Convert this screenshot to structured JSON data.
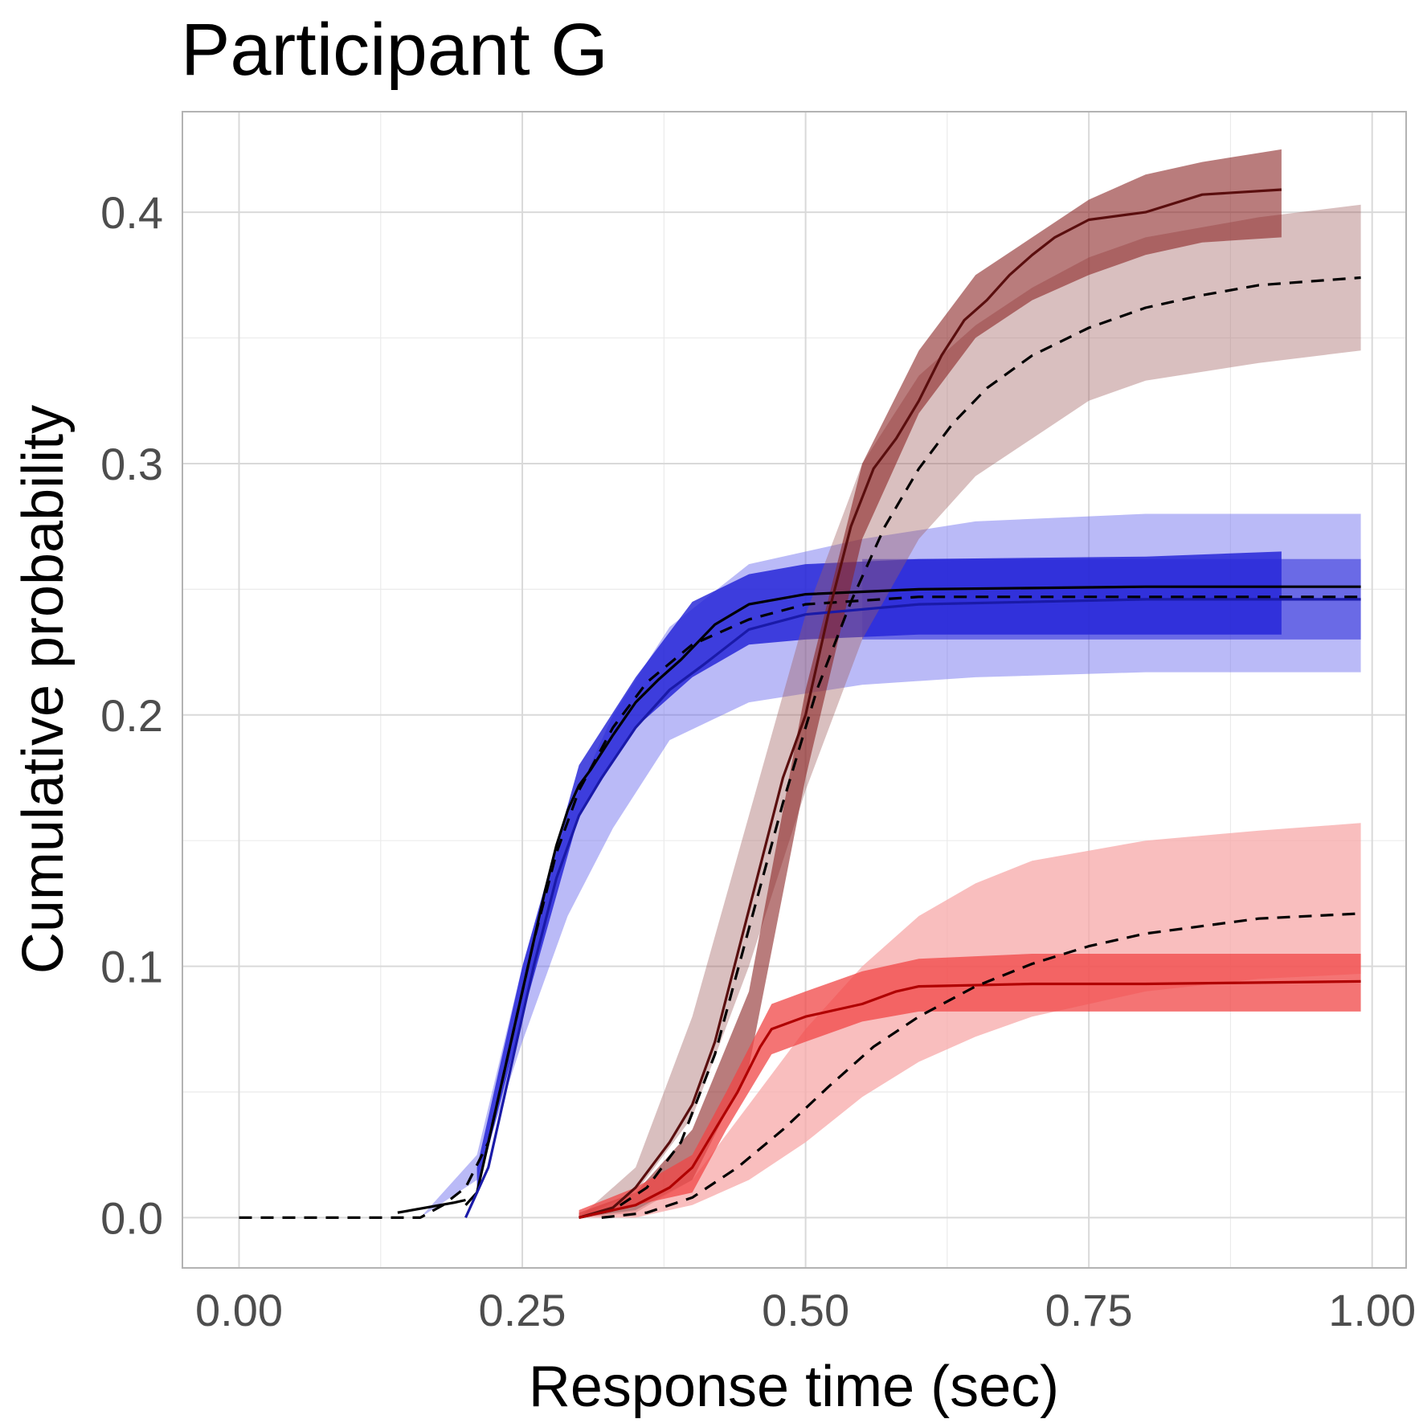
{
  "chart_data": {
    "type": "line",
    "title": "Participant G",
    "xlabel": "Response time (sec)",
    "ylabel": "Cumulative probability",
    "xlim": [
      -0.05,
      1.03
    ],
    "ylim": [
      -0.02,
      0.44
    ],
    "x_ticks": [
      {
        "value": 0.0,
        "label": "0.00"
      },
      {
        "value": 0.25,
        "label": "0.25"
      },
      {
        "value": 0.5,
        "label": "0.50"
      },
      {
        "value": 0.75,
        "label": "0.75"
      },
      {
        "value": 1.0,
        "label": "1.00"
      }
    ],
    "y_ticks": [
      {
        "value": 0.0,
        "label": "0.0"
      },
      {
        "value": 0.1,
        "label": "0.1"
      },
      {
        "value": 0.2,
        "label": "0.2"
      },
      {
        "value": 0.3,
        "label": "0.3"
      },
      {
        "value": 0.4,
        "label": "0.4"
      }
    ],
    "grid": true,
    "legend": "none",
    "bands": [
      {
        "color": "#6666ee",
        "opacity": 0.45,
        "x": [
          0.16,
          0.21,
          0.25,
          0.29,
          0.33,
          0.38,
          0.45,
          0.55,
          0.65,
          0.8,
          0.99
        ],
        "lower": [
          0.0,
          0.015,
          0.07,
          0.12,
          0.155,
          0.19,
          0.205,
          0.212,
          0.215,
          0.217,
          0.217
        ],
        "upper": [
          0.0,
          0.025,
          0.1,
          0.16,
          0.2,
          0.235,
          0.26,
          0.27,
          0.277,
          0.28,
          0.28
        ]
      },
      {
        "color": "#1e1ed6",
        "opacity": 0.8,
        "x": [
          0.21,
          0.25,
          0.3,
          0.35,
          0.4,
          0.45,
          0.5,
          0.6,
          0.8,
          0.92
        ],
        "lower": [
          0.01,
          0.08,
          0.16,
          0.195,
          0.215,
          0.228,
          0.23,
          0.232,
          0.232,
          0.232
        ],
        "upper": [
          0.02,
          0.1,
          0.18,
          0.215,
          0.245,
          0.256,
          0.26,
          0.262,
          0.263,
          0.265
        ]
      },
      {
        "color": "#2828d8",
        "opacity": 0.55,
        "x": [
          0.55,
          0.65,
          0.8,
          0.99
        ],
        "lower": [
          0.23,
          0.23,
          0.23,
          0.23
        ],
        "upper": [
          0.262,
          0.262,
          0.262,
          0.262
        ]
      },
      {
        "color": "#a06060",
        "opacity": 0.4,
        "x": [
          0.3,
          0.35,
          0.4,
          0.45,
          0.5,
          0.55,
          0.6,
          0.65,
          0.7,
          0.75,
          0.8,
          0.9,
          0.99
        ],
        "lower": [
          0.0,
          0.01,
          0.04,
          0.1,
          0.17,
          0.23,
          0.27,
          0.295,
          0.31,
          0.325,
          0.333,
          0.34,
          0.345
        ],
        "upper": [
          0.0,
          0.02,
          0.08,
          0.16,
          0.24,
          0.3,
          0.335,
          0.355,
          0.37,
          0.382,
          0.39,
          0.398,
          0.403
        ]
      },
      {
        "color": "#8b2525",
        "opacity": 0.6,
        "x": [
          0.3,
          0.35,
          0.4,
          0.45,
          0.5,
          0.55,
          0.6,
          0.65,
          0.7,
          0.75,
          0.8,
          0.85,
          0.92
        ],
        "lower": [
          0.0,
          0.002,
          0.015,
          0.06,
          0.175,
          0.27,
          0.32,
          0.35,
          0.365,
          0.375,
          0.383,
          0.388,
          0.39
        ],
        "upper": [
          0.002,
          0.01,
          0.035,
          0.09,
          0.21,
          0.3,
          0.345,
          0.375,
          0.39,
          0.405,
          0.415,
          0.42,
          0.425
        ]
      },
      {
        "color": "#f7a8a8",
        "opacity": 0.75,
        "x": [
          0.3,
          0.35,
          0.4,
          0.45,
          0.5,
          0.55,
          0.6,
          0.65,
          0.7,
          0.8,
          0.9,
          0.99
        ],
        "lower": [
          0.0,
          0.0,
          0.005,
          0.015,
          0.03,
          0.048,
          0.062,
          0.072,
          0.08,
          0.09,
          0.095,
          0.097
        ],
        "upper": [
          0.0,
          0.003,
          0.015,
          0.045,
          0.075,
          0.1,
          0.12,
          0.133,
          0.142,
          0.15,
          0.154,
          0.157
        ]
      },
      {
        "color": "#f04545",
        "opacity": 0.75,
        "x": [
          0.3,
          0.35,
          0.4,
          0.43,
          0.47,
          0.5,
          0.55,
          0.6,
          0.7,
          0.8,
          0.99
        ],
        "lower": [
          0.0,
          0.005,
          0.01,
          0.035,
          0.065,
          0.07,
          0.078,
          0.082,
          0.082,
          0.082,
          0.082
        ],
        "upper": [
          0.003,
          0.012,
          0.025,
          0.05,
          0.085,
          0.09,
          0.098,
          0.103,
          0.105,
          0.105,
          0.105
        ]
      }
    ],
    "series": [
      {
        "color": "#000000",
        "dash": false,
        "x": [
          0.14,
          0.19,
          0.2
        ],
        "y": [
          0.002,
          0.006,
          0.007
        ]
      },
      {
        "color": "#000000",
        "dash": false,
        "x": [
          0.2,
          0.21,
          0.22,
          0.23,
          0.24,
          0.25,
          0.26,
          0.27,
          0.28,
          0.29,
          0.3,
          0.31,
          0.33,
          0.35,
          0.37,
          0.39,
          0.42,
          0.45,
          0.5,
          0.6,
          0.8,
          0.99
        ],
        "y": [
          0.005,
          0.01,
          0.03,
          0.05,
          0.07,
          0.09,
          0.11,
          0.13,
          0.148,
          0.162,
          0.172,
          0.178,
          0.192,
          0.205,
          0.214,
          0.222,
          0.236,
          0.244,
          0.248,
          0.25,
          0.251,
          0.251
        ]
      },
      {
        "color": "#1a1aa8",
        "dash": false,
        "x": [
          0.2,
          0.22,
          0.24,
          0.26,
          0.28,
          0.3,
          0.32,
          0.35,
          0.38,
          0.41,
          0.45,
          0.5,
          0.6,
          0.8,
          0.99
        ],
        "y": [
          0.0,
          0.02,
          0.06,
          0.1,
          0.135,
          0.16,
          0.175,
          0.195,
          0.21,
          0.22,
          0.234,
          0.24,
          0.244,
          0.246,
          0.246
        ]
      },
      {
        "color": "#000000",
        "dash": true,
        "x": [
          0.0,
          0.12,
          0.16,
          0.18,
          0.2,
          0.22,
          0.24,
          0.26,
          0.28,
          0.3,
          0.33,
          0.36,
          0.4,
          0.45,
          0.5,
          0.6,
          0.8,
          0.99
        ],
        "y": [
          0.0,
          0.0,
          0.0,
          0.005,
          0.012,
          0.03,
          0.07,
          0.11,
          0.145,
          0.17,
          0.195,
          0.213,
          0.228,
          0.238,
          0.244,
          0.247,
          0.247,
          0.247
        ]
      },
      {
        "color": "#5a0e0e",
        "dash": false,
        "x": [
          0.3,
          0.33,
          0.35,
          0.38,
          0.4,
          0.42,
          0.44,
          0.46,
          0.48,
          0.5,
          0.52,
          0.54,
          0.56,
          0.58,
          0.6,
          0.62,
          0.64,
          0.66,
          0.68,
          0.7,
          0.72,
          0.75,
          0.8,
          0.85,
          0.92
        ],
        "y": [
          0.0,
          0.004,
          0.012,
          0.03,
          0.045,
          0.07,
          0.105,
          0.14,
          0.175,
          0.2,
          0.24,
          0.275,
          0.298,
          0.31,
          0.325,
          0.343,
          0.357,
          0.365,
          0.375,
          0.383,
          0.39,
          0.397,
          0.4,
          0.407,
          0.409
        ]
      },
      {
        "color": "#000000",
        "dash": true,
        "x": [
          0.3,
          0.33,
          0.36,
          0.39,
          0.42,
          0.45,
          0.48,
          0.51,
          0.54,
          0.57,
          0.6,
          0.63,
          0.66,
          0.7,
          0.75,
          0.8,
          0.85,
          0.9,
          0.99
        ],
        "y": [
          0.0,
          0.003,
          0.012,
          0.03,
          0.065,
          0.115,
          0.165,
          0.21,
          0.245,
          0.275,
          0.298,
          0.316,
          0.33,
          0.343,
          0.354,
          0.362,
          0.367,
          0.371,
          0.374
        ]
      },
      {
        "color": "#b00000",
        "dash": false,
        "x": [
          0.3,
          0.35,
          0.38,
          0.4,
          0.42,
          0.44,
          0.46,
          0.47,
          0.5,
          0.55,
          0.58,
          0.6,
          0.7,
          0.8,
          0.99
        ],
        "y": [
          0.0,
          0.005,
          0.012,
          0.02,
          0.035,
          0.05,
          0.068,
          0.075,
          0.08,
          0.085,
          0.09,
          0.092,
          0.093,
          0.093,
          0.094
        ]
      },
      {
        "color": "#000000",
        "dash": true,
        "x": [
          0.32,
          0.36,
          0.4,
          0.44,
          0.48,
          0.52,
          0.56,
          0.6,
          0.65,
          0.7,
          0.75,
          0.8,
          0.85,
          0.9,
          0.99
        ],
        "y": [
          0.0,
          0.002,
          0.008,
          0.02,
          0.035,
          0.052,
          0.068,
          0.08,
          0.092,
          0.101,
          0.108,
          0.113,
          0.116,
          0.119,
          0.121
        ]
      }
    ]
  }
}
